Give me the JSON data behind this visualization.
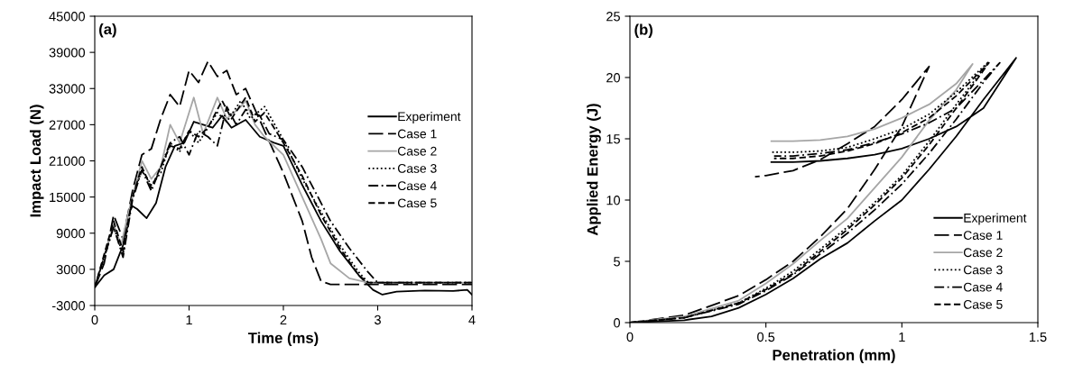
{
  "chart_data": [
    {
      "type": "line",
      "title": "(a)",
      "xlabel": "Time (ms)",
      "ylabel": "Impact Load (N)",
      "xlim": [
        0,
        4
      ],
      "xticks": [
        0,
        1,
        2,
        3,
        4
      ],
      "ylim": [
        -3000,
        45000
      ],
      "yticks": [
        -3000,
        3000,
        9000,
        15000,
        21000,
        27000,
        33000,
        39000,
        45000
      ],
      "grid": false,
      "legend": "right",
      "marker": "none",
      "series": [
        {
          "name": "Experiment",
          "color": "#000000",
          "line_style": "solid",
          "x": [
            0,
            0.1,
            0.2,
            0.3,
            0.35,
            0.4,
            0.45,
            0.55,
            0.65,
            0.75,
            0.85,
            0.95,
            1.05,
            1.15,
            1.25,
            1.35,
            1.45,
            1.6,
            1.75,
            1.9,
            2.0,
            2.2,
            2.4,
            2.6,
            2.8,
            2.95,
            3.05,
            3.2,
            3.5,
            3.8,
            3.95,
            4.0
          ],
          "values": [
            0,
            2000,
            3000,
            7000,
            12000,
            13500,
            13000,
            11500,
            14000,
            20000,
            23500,
            24000,
            27500,
            27000,
            26500,
            28500,
            26500,
            27800,
            25000,
            24000,
            23500,
            17000,
            11000,
            6000,
            2000,
            -400,
            -1200,
            -700,
            -500,
            -600,
            -400,
            -1200
          ]
        },
        {
          "name": "Case 1",
          "color": "#000000",
          "line_style": "longdash",
          "x": [
            0,
            0.1,
            0.2,
            0.3,
            0.4,
            0.5,
            0.6,
            0.7,
            0.8,
            0.9,
            1.0,
            1.1,
            1.2,
            1.3,
            1.4,
            1.5,
            1.6,
            1.8,
            2.0,
            2.2,
            2.3,
            2.4,
            2.5,
            4.0
          ],
          "values": [
            0,
            4000,
            12000,
            8000,
            16000,
            22000,
            23000,
            28000,
            32000,
            30000,
            36000,
            34000,
            37500,
            35000,
            36000,
            32000,
            33000,
            26000,
            19000,
            11000,
            5000,
            1000,
            500,
            500
          ]
        },
        {
          "name": "Case 2",
          "color": "#a6a6a6",
          "line_style": "solid",
          "x": [
            0,
            0.2,
            0.28,
            0.35,
            0.5,
            0.6,
            0.7,
            0.8,
            0.9,
            1.05,
            1.15,
            1.3,
            1.4,
            1.55,
            1.6,
            1.7,
            1.8,
            2.0,
            2.2,
            2.4,
            2.5,
            2.7,
            2.9,
            4.0
          ],
          "values": [
            0,
            10500,
            7000,
            12000,
            21000,
            18000,
            20000,
            27000,
            24000,
            31500,
            25500,
            31500,
            28000,
            30000,
            31000,
            27000,
            25000,
            22000,
            15000,
            8000,
            4000,
            1500,
            800,
            800
          ]
        },
        {
          "name": "Case 3",
          "color": "#000000",
          "line_style": "dotted",
          "x": [
            0,
            0.2,
            0.3,
            0.4,
            0.5,
            0.6,
            0.7,
            0.8,
            0.9,
            1.0,
            1.1,
            1.3,
            1.4,
            1.55,
            1.65,
            1.8,
            2.0,
            2.2,
            2.4,
            2.6,
            2.8,
            2.9,
            4.0
          ],
          "values": [
            0,
            10000,
            5500,
            15000,
            19500,
            17000,
            19000,
            24000,
            22500,
            26000,
            24000,
            29000,
            27500,
            31000,
            28000,
            30000,
            24500,
            18000,
            12500,
            7000,
            2500,
            800,
            800
          ]
        },
        {
          "name": "Case 4",
          "color": "#000000",
          "line_style": "dashdot",
          "x": [
            0,
            0.2,
            0.3,
            0.4,
            0.5,
            0.6,
            0.8,
            0.9,
            1.0,
            1.1,
            1.2,
            1.3,
            1.4,
            1.5,
            1.6,
            1.75,
            1.85,
            2.0,
            2.2,
            2.5,
            2.7,
            2.9,
            3.0,
            4.0
          ],
          "values": [
            0,
            10000,
            5000,
            14500,
            19500,
            16000,
            24000,
            25000,
            22000,
            26000,
            25000,
            23500,
            30000,
            27000,
            29500,
            28500,
            25500,
            24500,
            20000,
            11000,
            6500,
            2500,
            800,
            800
          ]
        },
        {
          "name": "Case 5",
          "color": "#000000",
          "line_style": "dashed",
          "x": [
            0,
            0.2,
            0.3,
            0.4,
            0.5,
            0.6,
            0.8,
            0.9,
            1.0,
            1.1,
            1.2,
            1.35,
            1.45,
            1.6,
            1.7,
            1.8,
            2.0,
            2.2,
            2.4,
            2.6,
            2.8,
            2.9,
            4.0
          ],
          "values": [
            0,
            11000,
            6000,
            15000,
            20000,
            16500,
            23500,
            23000,
            26000,
            25000,
            26500,
            31000,
            28000,
            31500,
            27500,
            29000,
            24000,
            18500,
            12000,
            6500,
            2000,
            800,
            800
          ]
        }
      ]
    },
    {
      "type": "line",
      "title": "(b)",
      "xlabel": "Penetration (mm)",
      "ylabel": "Applied Energy (J)",
      "xlim": [
        0,
        1.5
      ],
      "xticks": [
        0,
        0.5,
        1,
        1.5
      ],
      "ylim": [
        0,
        25
      ],
      "yticks": [
        0,
        5,
        10,
        15,
        20,
        25
      ],
      "grid": false,
      "legend": "bottom right",
      "marker": "none",
      "series": [
        {
          "name": "Experiment",
          "color": "#000000",
          "line_style": "solid",
          "x": [
            0,
            0.2,
            0.3,
            0.4,
            0.5,
            0.6,
            0.7,
            0.8,
            0.9,
            1.0,
            1.1,
            1.2,
            1.3,
            1.42,
            1.3,
            1.2,
            1.1,
            1.0,
            0.9,
            0.8,
            0.7,
            0.6,
            0.52
          ],
          "values": [
            0,
            0.2,
            0.5,
            1.2,
            2.3,
            3.6,
            5.2,
            6.5,
            8.3,
            10.0,
            12.5,
            15.2,
            18.2,
            21.6,
            17.5,
            16.0,
            15.0,
            14.2,
            13.7,
            13.4,
            13.2,
            13.1,
            13.1
          ]
        },
        {
          "name": "Case 1",
          "color": "#000000",
          "line_style": "longdash",
          "x": [
            0,
            0.2,
            0.4,
            0.5,
            0.6,
            0.7,
            0.8,
            0.9,
            1.0,
            1.1,
            1.0,
            0.9,
            0.8,
            0.7,
            0.6,
            0.5,
            0.46
          ],
          "values": [
            0,
            0.6,
            2.2,
            3.5,
            5.0,
            7.0,
            9.3,
            12.5,
            16.0,
            20.9,
            18.2,
            16.0,
            14.6,
            13.3,
            12.4,
            12.0,
            11.9
          ]
        },
        {
          "name": "Case 2",
          "color": "#a6a6a6",
          "line_style": "solid",
          "x": [
            0,
            0.2,
            0.4,
            0.5,
            0.6,
            0.7,
            0.8,
            0.9,
            1.0,
            1.1,
            1.2,
            1.26,
            1.2,
            1.1,
            1.0,
            0.9,
            0.8,
            0.7,
            0.6,
            0.52
          ],
          "values": [
            0,
            0.5,
            1.8,
            3.2,
            4.8,
            6.7,
            8.5,
            11.0,
            13.5,
            16.5,
            19.0,
            21.1,
            19.5,
            17.8,
            16.7,
            15.8,
            15.2,
            14.9,
            14.8,
            14.8
          ]
        },
        {
          "name": "Case 3",
          "color": "#000000",
          "line_style": "dotted",
          "x": [
            0,
            0.2,
            0.4,
            0.5,
            0.6,
            0.7,
            0.8,
            0.9,
            1.0,
            1.1,
            1.2,
            1.32,
            1.2,
            1.1,
            1.0,
            0.9,
            0.8,
            0.7,
            0.6,
            0.52
          ],
          "values": [
            0,
            0.4,
            1.6,
            2.8,
            4.2,
            6.0,
            7.8,
            9.8,
            12.0,
            14.8,
            17.8,
            21.3,
            18.8,
            17.0,
            15.8,
            15.0,
            14.3,
            14.0,
            13.9,
            13.9
          ]
        },
        {
          "name": "Case 4",
          "color": "#000000",
          "line_style": "dashdot",
          "x": [
            0,
            0.2,
            0.4,
            0.5,
            0.6,
            0.7,
            0.8,
            0.9,
            1.0,
            1.1,
            1.2,
            1.3,
            1.36,
            1.3,
            1.2,
            1.1,
            1.0,
            0.9,
            0.8,
            0.7,
            0.6,
            0.53
          ],
          "values": [
            0,
            0.4,
            1.5,
            2.6,
            3.9,
            5.6,
            7.3,
            9.2,
            11.3,
            13.8,
            16.6,
            19.6,
            21.2,
            19.8,
            17.5,
            16.3,
            15.4,
            14.7,
            14.1,
            13.8,
            13.6,
            13.6
          ]
        },
        {
          "name": "Case 5",
          "color": "#000000",
          "line_style": "dashed",
          "x": [
            0,
            0.2,
            0.4,
            0.5,
            0.6,
            0.7,
            0.8,
            0.9,
            1.0,
            1.1,
            1.2,
            1.32,
            1.2,
            1.1,
            1.0,
            0.9,
            0.8,
            0.7,
            0.6,
            0.53
          ],
          "values": [
            0,
            0.4,
            1.6,
            2.7,
            4.0,
            5.8,
            7.6,
            9.6,
            11.8,
            14.5,
            17.5,
            21.2,
            18.5,
            16.7,
            15.5,
            14.6,
            14.0,
            13.6,
            13.4,
            13.4
          ]
        }
      ]
    }
  ]
}
